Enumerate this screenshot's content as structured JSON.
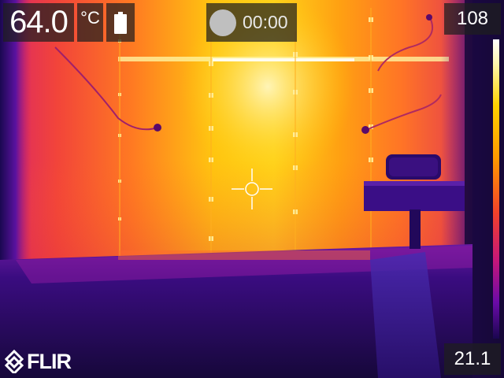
{
  "hud": {
    "spot_temperature": "64.0",
    "unit": "°C",
    "battery_icon": "battery-icon",
    "record_icon": "record-icon",
    "record_time": "00:00",
    "scale_max": "108",
    "scale_min": "21.1"
  },
  "brand": {
    "logo_text": "FLIR",
    "logo_icon": "flir-diamond-icon"
  },
  "palette": {
    "hot": "#fff6b0",
    "warm": "#ffb400",
    "mid": "#f24a2a",
    "cool": "#c5167a",
    "cold": "#2a0a6a"
  }
}
